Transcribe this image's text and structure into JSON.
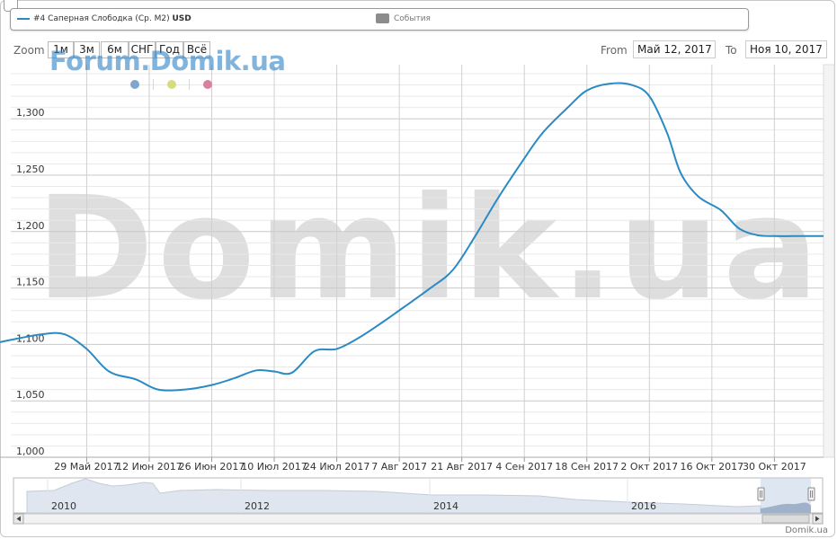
{
  "legend": {
    "series_name": "#4 Саперная Слободка (Ср. М2)",
    "series_unit": "USD",
    "series_color": "#2a8bc4",
    "events_label": "События",
    "events_color": "#8c8c8c"
  },
  "toolbar": {
    "zoom_label": "Zoom",
    "zoom_buttons": [
      "1м",
      "3м",
      "6м",
      "СНГ",
      "Год",
      "Всё"
    ],
    "from_label": "From",
    "from_value": "Май 12, 2017",
    "to_label": "To",
    "to_value": "Ноя 10, 2017"
  },
  "brand": {
    "logo_text": "Forum.Domik.ua",
    "logo_color": "#2e83c7",
    "dot_colors": [
      "#7fa6cf",
      "#d6dc7e",
      "#d9809c"
    ]
  },
  "watermark": "Domik.ua",
  "credit": "Domik.ua",
  "chart_data": {
    "type": "line",
    "x": [
      "2017-05-12",
      "2017-05-19",
      "2017-05-24",
      "2017-05-29",
      "2017-06-03",
      "2017-06-09",
      "2017-06-14",
      "2017-06-20",
      "2017-06-26",
      "2017-07-01",
      "2017-07-06",
      "2017-07-10",
      "2017-07-14",
      "2017-07-19",
      "2017-07-24",
      "2017-07-29",
      "2017-08-03",
      "2017-08-08",
      "2017-08-14",
      "2017-08-19",
      "2017-08-24",
      "2017-08-29",
      "2017-09-03",
      "2017-09-08",
      "2017-09-14",
      "2017-09-18",
      "2017-09-23",
      "2017-09-28",
      "2017-10-02",
      "2017-10-06",
      "2017-10-09",
      "2017-10-13",
      "2017-10-18",
      "2017-10-22",
      "2017-10-26",
      "2017-10-30",
      "2017-11-03",
      "2017-11-06",
      "2017-11-10"
    ],
    "series": [
      {
        "name": "#4 Саперная Слободка (Ср. М2)",
        "values": [
          1104,
          1109,
          1109,
          1096,
          1076,
          1069,
          1060,
          1060,
          1064,
          1070,
          1077,
          1076,
          1075,
          1094,
          1096,
          1106,
          1119,
          1133,
          1150,
          1166,
          1196,
          1229,
          1259,
          1287,
          1311,
          1325,
          1331,
          1330,
          1320,
          1287,
          1252,
          1231,
          1219,
          1203,
          1197,
          1196,
          1196,
          1196,
          1196
        ]
      }
    ],
    "x_tick_labels": [
      "29 Май 2017",
      "12 Июн 2017",
      "26 Июн 2017",
      "10 Июл 2017",
      "24 Июл 2017",
      "7 Авг 2017",
      "21 Авг 2017",
      "4 Сен 2017",
      "18 Сен 2017",
      "2 Окт 2017",
      "16 Окт 2017",
      "30 Окт 2017"
    ],
    "y_ticks": [
      1000,
      1050,
      1100,
      1150,
      1200,
      1250,
      1300
    ],
    "y_tick_labels": [
      "1,000",
      "1,050",
      "1,100",
      "1,150",
      "1,200",
      "1,250",
      "1,300"
    ],
    "ylim": [
      1000,
      1350
    ],
    "xlim": [
      "2017-05-12",
      "2017-11-10"
    ],
    "grid": true,
    "navigator": {
      "year_labels": [
        "2010",
        "2012",
        "2014",
        "2016"
      ]
    }
  }
}
